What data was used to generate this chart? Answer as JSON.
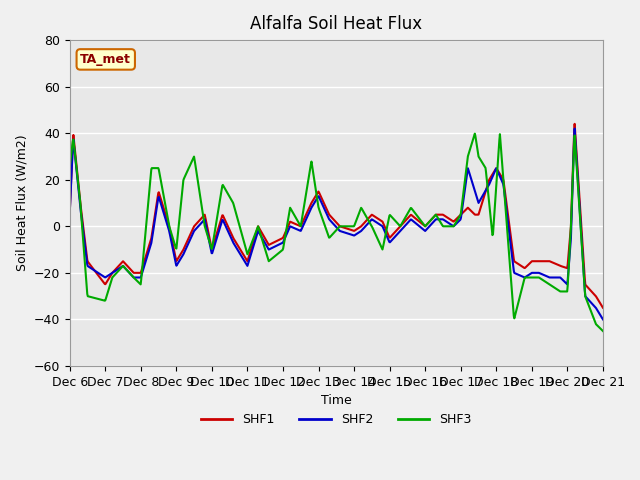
{
  "title": "Alfalfa Soil Heat Flux",
  "ylabel": "Soil Heat Flux (W/m2)",
  "xlabel": "Time",
  "ylim": [
    -60,
    80
  ],
  "bg_color": "#e8e8e8",
  "plot_bg": "#e8e8e8",
  "grid_color": "white",
  "annotation_box": "TA_met",
  "x_tick_labels": [
    "Dec 6",
    "Dec 7",
    "Dec 8",
    "Dec 9",
    "Dec 10",
    "Dec 11",
    "Dec 12",
    "Dec 13",
    "Dec 14",
    "Dec 15",
    "Dec 16",
    "Dec 17",
    "Dec 18",
    "Dec 19",
    "Dec 20",
    "Dec 21"
  ],
  "colors": {
    "SHF1": "#cc0000",
    "SHF2": "#0000cc",
    "SHF3": "#00aa00"
  },
  "linewidth": 1.5
}
